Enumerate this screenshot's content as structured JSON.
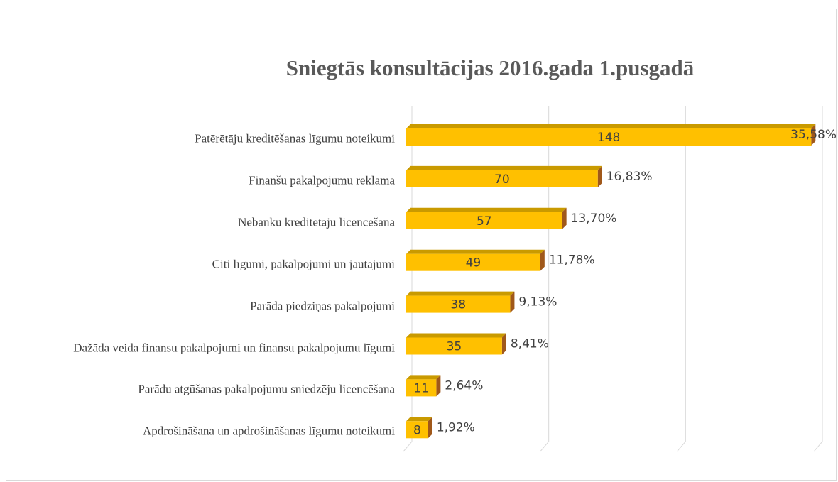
{
  "chart_data": {
    "type": "bar",
    "orientation": "horizontal",
    "title": "Sniegtās konsultācijas  2016.gada 1.pusgadā",
    "categories": [
      "Patērētāju kreditēšanas līgumu noteikumi",
      "Finanšu pakalpojumu reklāma",
      "Nebanku kreditētāju licencēšana",
      "Citi līgumi, pakalpojumi un jautājumi",
      "Parāda piedziņas pakalpojumi",
      "Dažāda veida finansu pakalpojumi un finansu pakalpojumu līgumi",
      "Parādu  atgūšanas pakalpojumu sniedzēju licencēšana",
      "Apdrošināšana un apdrošināšanas līgumu noteikumi"
    ],
    "values": [
      148,
      70,
      57,
      49,
      38,
      35,
      11,
      8
    ],
    "share_labels": [
      "35,58%",
      "16,83%",
      "13,70%",
      "11,78%",
      "9,13%",
      "8,41%",
      "2,64%",
      "1,92%"
    ],
    "color": "#ffc000",
    "top_color": "#c99a00",
    "side_color": "#a0581a",
    "xlim": [
      0,
      150
    ],
    "xticks": [
      0,
      50,
      100,
      150
    ],
    "grid": true
  }
}
